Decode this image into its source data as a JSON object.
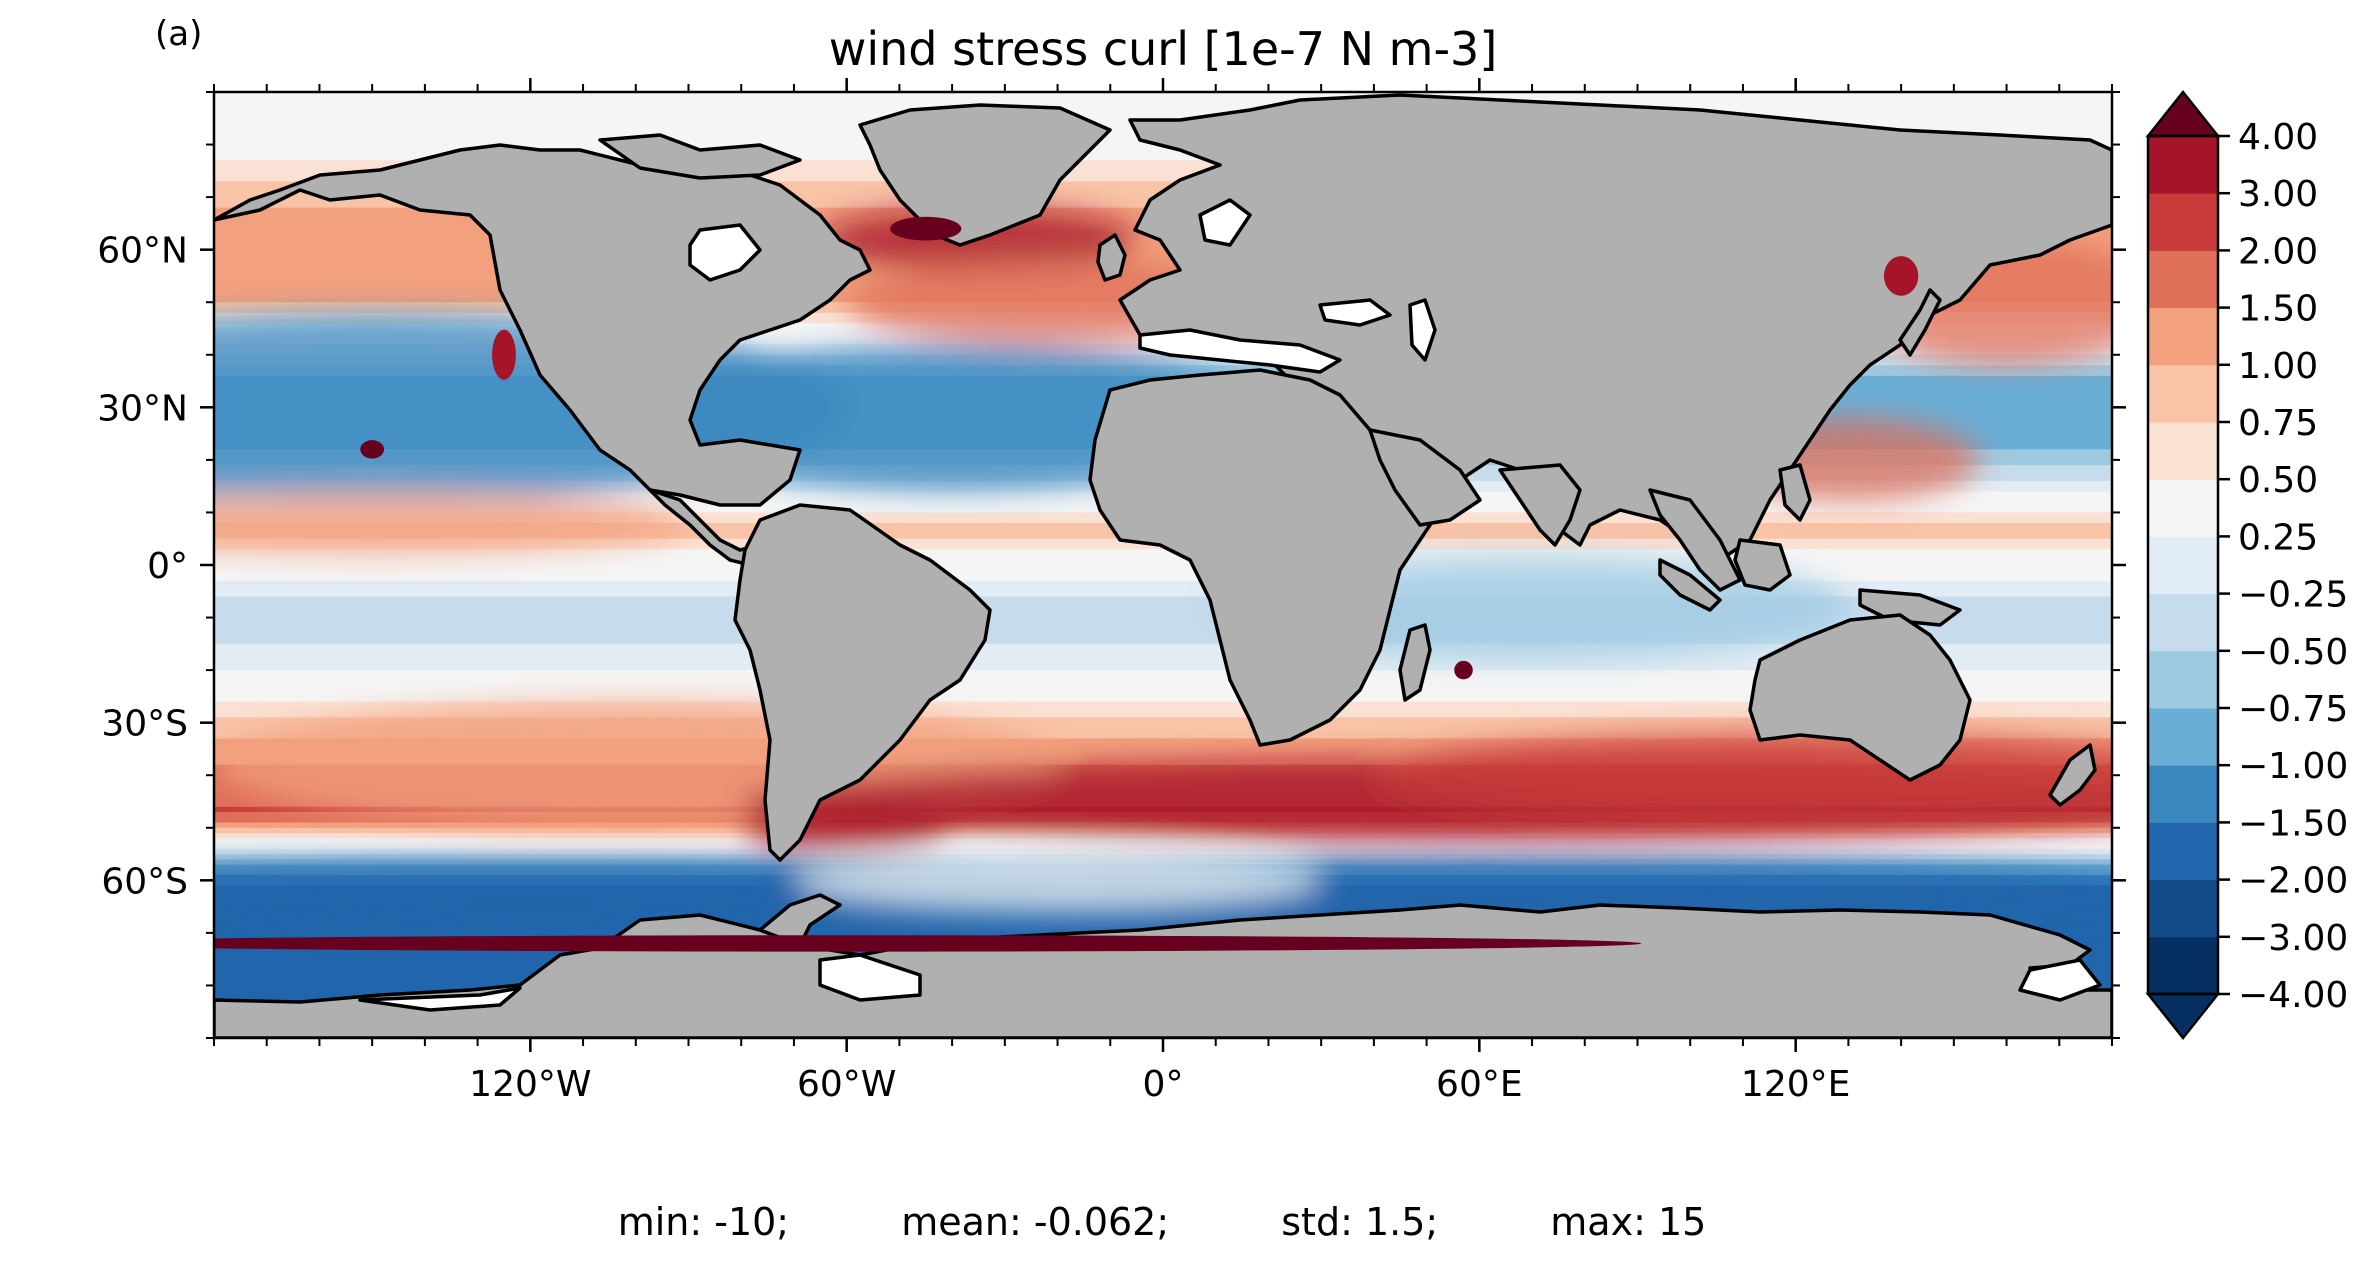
{
  "panel_label": "(a)",
  "title": "wind stress curl [1e-7 N m-3]",
  "map": {
    "projection": "PlateCarree",
    "lon_range": [
      -180,
      180
    ],
    "lat_range": [
      -90,
      90
    ],
    "lon_ticks": [
      {
        "value": -120,
        "label": "120°W"
      },
      {
        "value": -60,
        "label": "60°W"
      },
      {
        "value": 0,
        "label": "0°"
      },
      {
        "value": 60,
        "label": "60°E"
      },
      {
        "value": 120,
        "label": "120°E"
      }
    ],
    "lat_ticks": [
      {
        "value": 60,
        "label": "60°N"
      },
      {
        "value": 30,
        "label": "30°N"
      },
      {
        "value": 0,
        "label": "0°"
      },
      {
        "value": -30,
        "label": "30°S"
      },
      {
        "value": -60,
        "label": "60°S"
      }
    ],
    "land_color": "#b0b0b0",
    "sea_ice_color": "#ffffff",
    "coastline_color": "#000000"
  },
  "chart_data": {
    "type": "heatmap",
    "variable": "wind stress curl",
    "units": "1e-7 N m-3",
    "colormap": "RdBu_r",
    "extend": "both",
    "levels": [
      -4.0,
      -3.0,
      -2.0,
      -1.5,
      -1.0,
      -0.75,
      -0.5,
      -0.25,
      0.25,
      0.5,
      0.75,
      1.0,
      1.5,
      2.0,
      3.0,
      4.0
    ],
    "colorbar_tick_labels": [
      "4.00",
      "3.00",
      "2.00",
      "1.50",
      "1.00",
      "0.75",
      "0.50",
      "0.25",
      "−0.25",
      "−0.50",
      "−0.75",
      "−1.00",
      "−1.50",
      "−2.00",
      "−3.00",
      "−4.00"
    ],
    "colors_low_to_high": [
      "#053061",
      "#134c88",
      "#2166ac",
      "#3a87bf",
      "#6aaed5",
      "#9ecae1",
      "#c6dcec",
      "#e1ecf4",
      "#f5f5f5",
      "#fbe1d3",
      "#f8c3a7",
      "#f2a07e",
      "#df6f59",
      "#c93b3b",
      "#a51428",
      "#67001f"
    ],
    "zonal_bands_description_values": [
      {
        "lat": 80,
        "value": 0.1
      },
      {
        "lat": 65,
        "value": 0.9
      },
      {
        "lat": 50,
        "value": 0.8
      },
      {
        "lat": 35,
        "value": -1.2
      },
      {
        "lat": 25,
        "value": -1.3
      },
      {
        "lat": 15,
        "value": -0.4
      },
      {
        "lat": 7,
        "value": 0.7
      },
      {
        "lat": 0,
        "value": 0.0
      },
      {
        "lat": -8,
        "value": -0.7
      },
      {
        "lat": -18,
        "value": -0.4
      },
      {
        "lat": -30,
        "value": 0.6
      },
      {
        "lat": -40,
        "value": 1.1
      },
      {
        "lat": -47,
        "value": 1.6
      },
      {
        "lat": -55,
        "value": -0.6
      },
      {
        "lat": -60,
        "value": -1.8
      },
      {
        "lat": -64,
        "value": -2.6
      }
    ],
    "statistics": {
      "min_label": "min: -10;",
      "mean_label": "mean: -0.062;",
      "std_label": "std: 1.5;",
      "max_label": "max: 15"
    }
  }
}
